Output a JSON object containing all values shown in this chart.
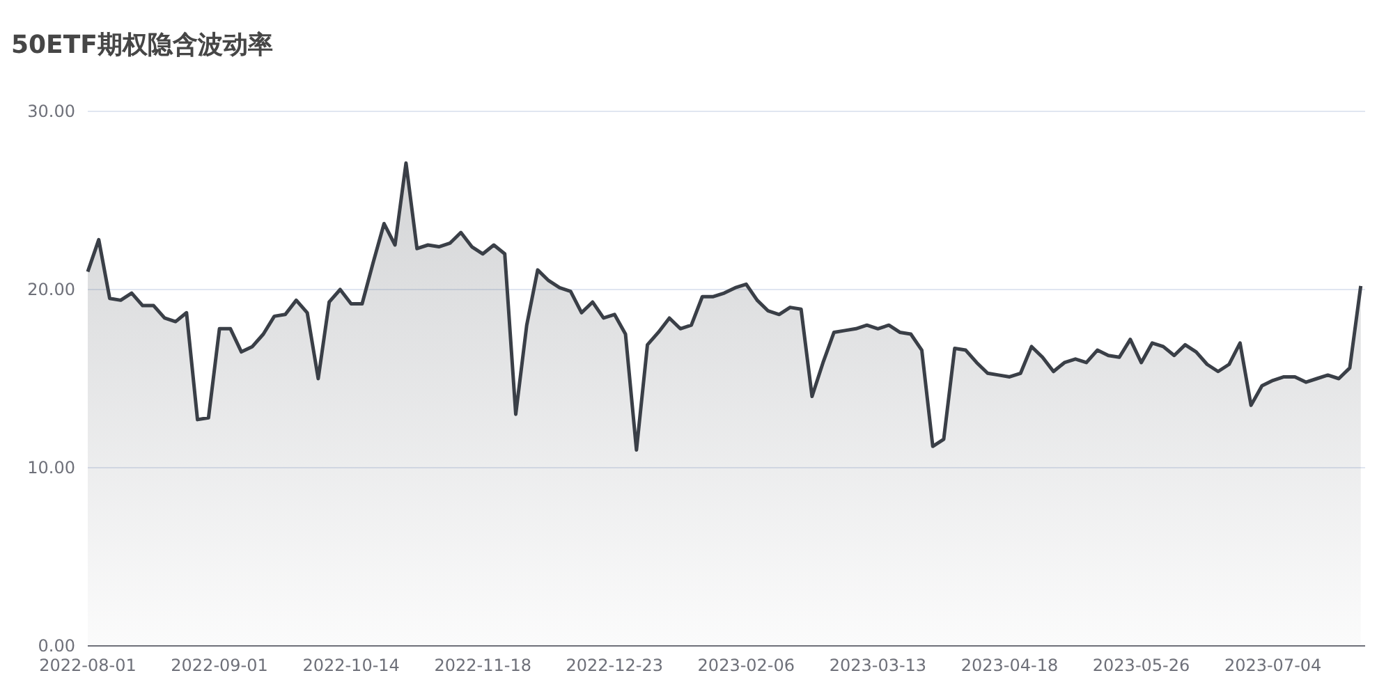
{
  "chart_data": {
    "type": "area",
    "title": "50ETF期权隐含波动率",
    "categories": [
      "2022-08-01",
      null,
      null,
      null,
      null,
      null,
      null,
      null,
      null,
      null,
      null,
      null,
      "2022-09-01",
      null,
      null,
      null,
      null,
      null,
      null,
      null,
      null,
      null,
      null,
      null,
      "2022-10-14",
      null,
      null,
      null,
      null,
      null,
      null,
      null,
      null,
      null,
      null,
      null,
      "2022-11-18",
      null,
      null,
      null,
      null,
      null,
      null,
      null,
      null,
      null,
      null,
      null,
      "2022-12-23",
      null,
      null,
      null,
      null,
      null,
      null,
      null,
      null,
      null,
      null,
      null,
      "2023-02-06",
      null,
      null,
      null,
      null,
      null,
      null,
      null,
      null,
      null,
      null,
      null,
      "2023-03-13",
      null,
      null,
      null,
      null,
      null,
      null,
      null,
      null,
      null,
      null,
      null,
      "2023-04-18",
      null,
      null,
      null,
      null,
      null,
      null,
      null,
      null,
      null,
      null,
      null,
      "2023-05-26",
      null,
      null,
      null,
      null,
      null,
      null,
      null,
      null,
      null,
      null,
      null,
      "2023-07-04",
      null,
      null,
      null,
      null,
      null,
      null,
      null,
      null
    ],
    "values": [
      21.0,
      22.8,
      19.5,
      19.4,
      19.8,
      19.1,
      19.1,
      18.4,
      18.2,
      18.7,
      12.7,
      12.8,
      17.8,
      17.8,
      16.5,
      16.8,
      17.5,
      18.5,
      18.6,
      19.4,
      18.7,
      15.0,
      19.3,
      20.0,
      19.2,
      19.2,
      21.5,
      23.7,
      22.5,
      27.1,
      22.3,
      22.5,
      22.4,
      22.6,
      23.2,
      22.4,
      22.0,
      22.5,
      22.0,
      13.0,
      18.0,
      21.1,
      20.5,
      20.1,
      19.9,
      18.7,
      19.3,
      18.4,
      18.6,
      17.5,
      11.0,
      16.9,
      17.6,
      18.4,
      17.8,
      18.0,
      19.6,
      19.6,
      19.8,
      20.1,
      20.3,
      19.4,
      18.8,
      18.6,
      19.0,
      18.9,
      14.0,
      15.9,
      17.6,
      17.7,
      17.8,
      18.0,
      17.8,
      18.0,
      17.6,
      17.5,
      16.6,
      11.2,
      11.6,
      16.7,
      16.6,
      15.9,
      15.3,
      15.2,
      15.1,
      15.3,
      16.8,
      16.2,
      15.4,
      15.9,
      16.1,
      15.9,
      16.6,
      16.3,
      16.2,
      17.2,
      15.9,
      17.0,
      16.8,
      16.3,
      16.9,
      16.5,
      15.8,
      15.4,
      15.8,
      17.0,
      13.5,
      14.6,
      14.9,
      15.1,
      15.1,
      14.8,
      15.0,
      15.2,
      15.0,
      15.6,
      20.2
    ],
    "color": "#3a3f47",
    "ylim": [
      0,
      30
    ],
    "yticks": [
      {
        "value": 0,
        "label": "0.00"
      },
      {
        "value": 10,
        "label": "10.00"
      },
      {
        "value": 20,
        "label": "20.00"
      },
      {
        "value": 30,
        "label": "30.00"
      }
    ],
    "grid": "y"
  }
}
